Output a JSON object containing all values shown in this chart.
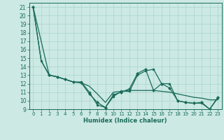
{
  "title": "",
  "xlabel": "Humidex (Indice chaleur)",
  "bg_color": "#cce9e4",
  "grid_color": "#aed8d0",
  "line_color": "#1a6b5a",
  "xlim": [
    -0.5,
    23.5
  ],
  "ylim": [
    9,
    21.5
  ],
  "yticks": [
    9,
    10,
    11,
    12,
    13,
    14,
    15,
    16,
    17,
    18,
    19,
    20,
    21
  ],
  "xticks": [
    0,
    1,
    2,
    3,
    4,
    5,
    6,
    7,
    8,
    9,
    10,
    11,
    12,
    13,
    14,
    15,
    16,
    17,
    18,
    19,
    20,
    21,
    22,
    23
  ],
  "line1_x": [
    0,
    1,
    2,
    3,
    4,
    5,
    6,
    7,
    8,
    9,
    10,
    11,
    12,
    13,
    14,
    15,
    16,
    17,
    18,
    19,
    20,
    21,
    22,
    23
  ],
  "line1_y": [
    21,
    14.7,
    13.0,
    12.8,
    12.5,
    12.2,
    12.1,
    11.7,
    10.8,
    9.8,
    11.0,
    11.1,
    11.2,
    11.2,
    11.2,
    11.2,
    11.1,
    11.0,
    10.8,
    10.6,
    10.4,
    10.3,
    10.1,
    10.1
  ],
  "line2_x": [
    0,
    1,
    2,
    3,
    4,
    5,
    6,
    7,
    8,
    9,
    10,
    11,
    12,
    13,
    14,
    15,
    16,
    17,
    18,
    19,
    20,
    21,
    22,
    23
  ],
  "line2_y": [
    21,
    14.7,
    13.0,
    12.8,
    12.5,
    12.2,
    12.2,
    11.0,
    9.5,
    9.2,
    10.5,
    11.1,
    11.1,
    13.0,
    13.5,
    13.7,
    12.0,
    12.0,
    10.0,
    9.8,
    9.7,
    9.7,
    9.0,
    10.3
  ],
  "line3_x": [
    0,
    2,
    3,
    4,
    5,
    6,
    7,
    8,
    9,
    10,
    11,
    12,
    13,
    14,
    15,
    16,
    17,
    18,
    19,
    20,
    21,
    22,
    23
  ],
  "line3_y": [
    21,
    13.0,
    12.8,
    12.5,
    12.2,
    12.1,
    10.8,
    9.8,
    9.2,
    10.7,
    11.0,
    11.4,
    13.2,
    13.7,
    11.2,
    12.0,
    11.5,
    10.0,
    9.8,
    9.7,
    9.8,
    9.0,
    10.4
  ],
  "marker_size": 2.0,
  "linewidth": 0.9
}
